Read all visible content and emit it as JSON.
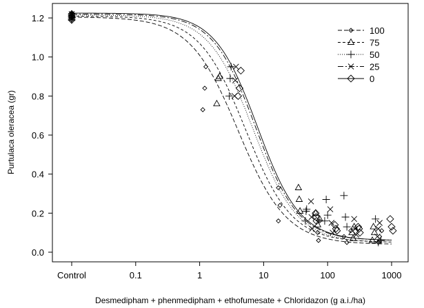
{
  "chart_data": {
    "type": "scatter",
    "xlabel": "Desmedipham + phenmedipham + ethofumesate + Chloridazon  (g a.i./ha)",
    "ylabel": "Purtulaca oleracea (gr)",
    "x_scale": "log",
    "x_ticks": [
      {
        "value": 0.01,
        "label": "Control"
      },
      {
        "value": 0.1,
        "label": "0.1"
      },
      {
        "value": 1,
        "label": "1"
      },
      {
        "value": 10,
        "label": "10"
      },
      {
        "value": 100,
        "label": "100"
      },
      {
        "value": 1000,
        "label": "1000"
      }
    ],
    "y_ticks": [
      {
        "value": 0.0,
        "label": "0.0"
      },
      {
        "value": 0.2,
        "label": "0.2"
      },
      {
        "value": 0.4,
        "label": "0.4"
      },
      {
        "value": 0.6,
        "label": "0.6"
      },
      {
        "value": 0.8,
        "label": "0.8"
      },
      {
        "value": 1.0,
        "label": "1.0"
      },
      {
        "value": 1.2,
        "label": "1.2"
      }
    ],
    "xlim": [
      0.01,
      1300
    ],
    "ylim": [
      -0.03,
      1.25
    ],
    "legend_position": "top-right",
    "series": [
      {
        "name": "100",
        "marker": "diamond-small",
        "dash": "6,3",
        "curve": {
          "upper": 1.205,
          "lower": 0.04,
          "ed50": 4.0,
          "slope": 1.15
        },
        "points": [
          [
            0.01,
            1.19
          ],
          [
            0.01,
            1.2
          ],
          [
            0.01,
            1.21
          ],
          [
            0.01,
            1.22
          ],
          [
            1.12,
            0.73
          ],
          [
            1.2,
            0.84
          ],
          [
            1.25,
            0.95
          ],
          [
            17,
            0.33
          ],
          [
            18,
            0.24
          ],
          [
            17,
            0.16
          ],
          [
            70,
            0.1
          ],
          [
            72,
            0.06
          ],
          [
            75,
            0.16
          ],
          [
            180,
            0.08
          ],
          [
            200,
            0.05
          ],
          [
            230,
            0.11
          ],
          [
            620,
            0.05
          ],
          [
            650,
            0.08
          ],
          [
            700,
            0.11
          ]
        ]
      },
      {
        "name": "75",
        "marker": "triangle",
        "dash": "4,3",
        "curve": {
          "upper": 1.21,
          "lower": 0.05,
          "ed50": 5.2,
          "slope": 1.2
        },
        "points": [
          [
            0.01,
            1.2
          ],
          [
            0.01,
            1.21
          ],
          [
            0.01,
            1.22
          ],
          [
            1.85,
            0.76
          ],
          [
            1.95,
            0.89
          ],
          [
            2.05,
            0.9
          ],
          [
            35,
            0.33
          ],
          [
            36,
            0.27
          ],
          [
            37,
            0.21
          ],
          [
            65,
            0.2
          ],
          [
            70,
            0.14
          ],
          [
            75,
            0.17
          ],
          [
            240,
            0.1
          ],
          [
            250,
            0.07
          ],
          [
            260,
            0.13
          ],
          [
            500,
            0.06
          ],
          [
            520,
            0.13
          ],
          [
            540,
            0.1
          ]
        ]
      },
      {
        "name": "50",
        "marker": "plus",
        "dash": "1,2",
        "curve": {
          "upper": 1.215,
          "lower": 0.05,
          "ed50": 6.8,
          "slope": 1.25
        },
        "points": [
          [
            0.01,
            1.19
          ],
          [
            0.01,
            1.2
          ],
          [
            0.01,
            1.21
          ],
          [
            2.9,
            0.8
          ],
          [
            3.0,
            0.89
          ],
          [
            3.1,
            0.95
          ],
          [
            45,
            0.16
          ],
          [
            46,
            0.21
          ],
          [
            47,
            0.22
          ],
          [
            90,
            0.16
          ],
          [
            95,
            0.27
          ],
          [
            100,
            0.19
          ],
          [
            180,
            0.29
          ],
          [
            190,
            0.18
          ],
          [
            200,
            0.13
          ],
          [
            560,
            0.17
          ],
          [
            620,
            0.05
          ],
          [
            680,
            0.06
          ]
        ]
      },
      {
        "name": "25",
        "marker": "cross",
        "dash": "8,3,2,3",
        "curve": {
          "upper": 1.22,
          "lower": 0.06,
          "ed50": 7.5,
          "slope": 1.3
        },
        "points": [
          [
            0.01,
            1.2
          ],
          [
            0.01,
            1.21
          ],
          [
            0.01,
            1.22
          ],
          [
            3.5,
            0.8
          ],
          [
            3.6,
            0.88
          ],
          [
            3.7,
            0.95
          ],
          [
            55,
            0.26
          ],
          [
            56,
            0.18
          ],
          [
            57,
            0.12
          ],
          [
            110,
            0.22
          ],
          [
            115,
            0.15
          ],
          [
            120,
            0.1
          ],
          [
            260,
            0.17
          ],
          [
            270,
            0.12
          ],
          [
            280,
            0.09
          ],
          [
            600,
            0.08
          ],
          [
            620,
            0.12
          ],
          [
            650,
            0.15
          ]
        ]
      },
      {
        "name": "0",
        "marker": "diamond",
        "dash": "",
        "curve": {
          "upper": 1.225,
          "lower": 0.06,
          "ed50": 8.0,
          "slope": 1.3
        },
        "points": [
          [
            0.01,
            1.19
          ],
          [
            0.01,
            1.21
          ],
          [
            0.01,
            1.22
          ],
          [
            4.0,
            0.8
          ],
          [
            4.2,
            0.84
          ],
          [
            4.4,
            0.93
          ],
          [
            65,
            0.2
          ],
          [
            66,
            0.18
          ],
          [
            67,
            0.16
          ],
          [
            130,
            0.14
          ],
          [
            135,
            0.12
          ],
          [
            140,
            0.11
          ],
          [
            300,
            0.13
          ],
          [
            310,
            0.12
          ],
          [
            320,
            0.1
          ],
          [
            950,
            0.17
          ],
          [
            1000,
            0.13
          ],
          [
            1050,
            0.11
          ]
        ]
      }
    ]
  }
}
